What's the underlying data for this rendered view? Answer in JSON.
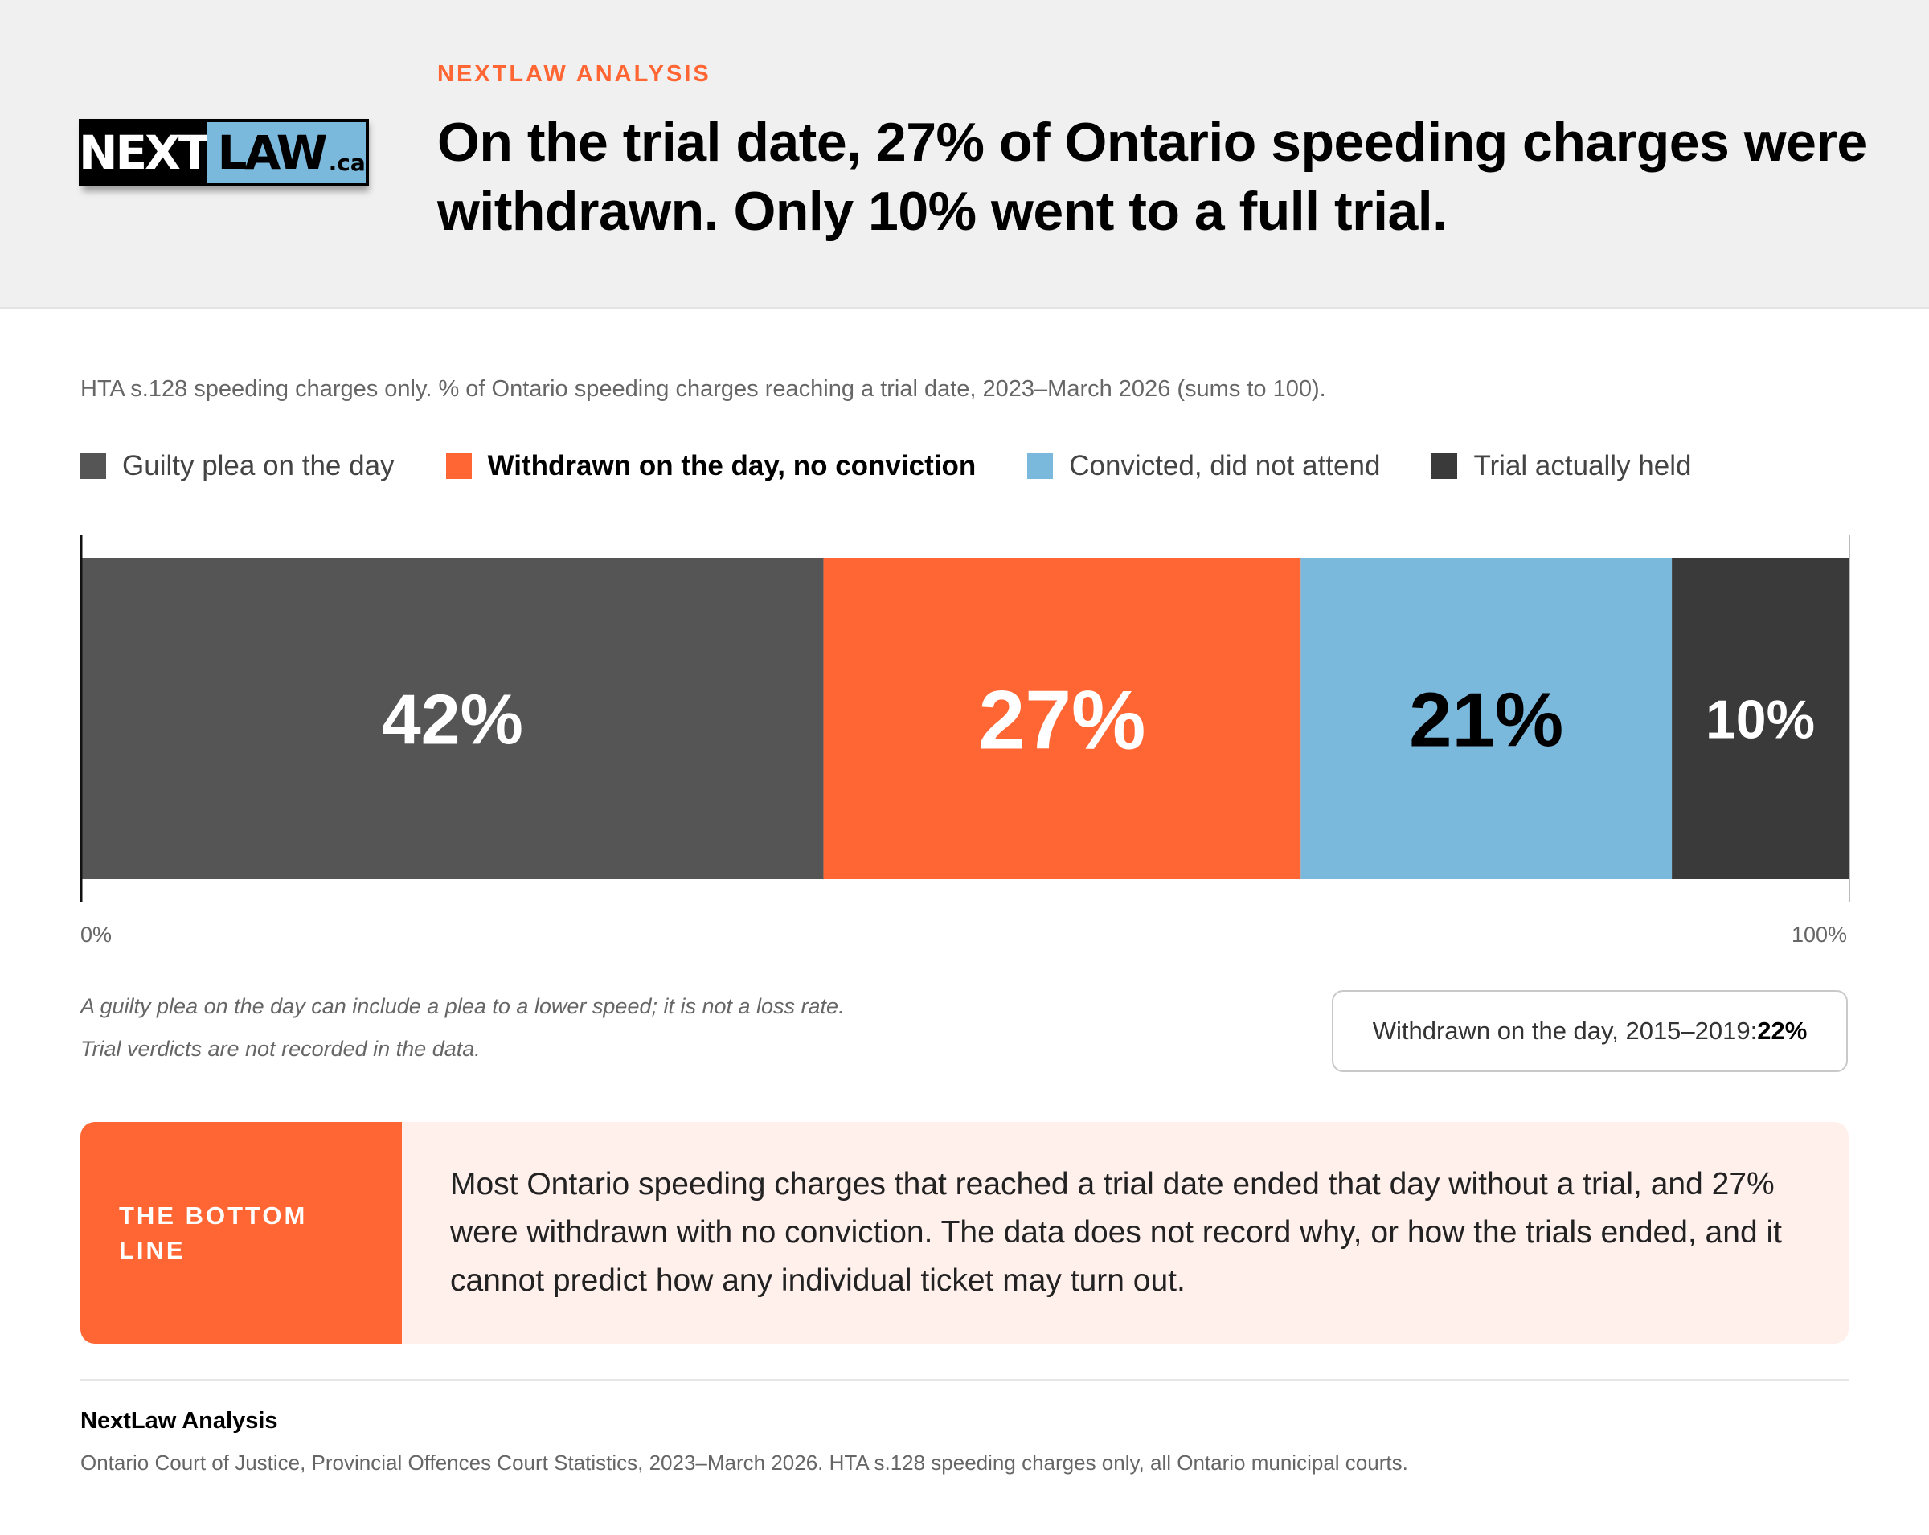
{
  "header": {
    "logo_next": "NEXT",
    "logo_law": "LAW",
    "logo_ca": ".ca",
    "kicker": "NEXTLAW ANALYSIS",
    "title": "On the trial date, 27% of Ontario speeding charges were withdrawn. Only 10% went to a full trial."
  },
  "subtitle": "HTA s.128 speeding charges only. % of Ontario speeding charges reaching a trial date, 2023–March 2026 (sums to 100).",
  "legend": [
    {
      "label": "Guilty plea on the day",
      "color": "#555555"
    },
    {
      "label": "Withdrawn on the day, no conviction",
      "color": "#ff6633"
    },
    {
      "label": "Convicted, did not attend",
      "color": "#7ab8dc"
    },
    {
      "label": "Trial actually held",
      "color": "#3a3a3a"
    }
  ],
  "chart_data": {
    "type": "bar",
    "orientation": "horizontal-stacked-100",
    "categories": [
      "Guilty plea on the day",
      "Withdrawn on the day, no conviction",
      "Convicted, did not attend",
      "Trial actually held"
    ],
    "series": [
      {
        "name": "Guilty plea on the day",
        "value": 42,
        "label": "42%",
        "color": "#555555",
        "label_color": "#ffffff"
      },
      {
        "name": "Withdrawn on the day, no conviction",
        "value": 27,
        "label": "27%",
        "color": "#ff6633",
        "label_color": "#ffffff"
      },
      {
        "name": "Convicted, did not attend",
        "value": 21,
        "label": "21%",
        "color": "#7ab8dc",
        "label_color": "#000000"
      },
      {
        "name": "Trial actually held",
        "value": 10,
        "label": "10%",
        "color": "#3a3a3a",
        "label_color": "#ffffff"
      }
    ],
    "xlim": [
      0,
      100
    ],
    "x_tick_labels": [
      "0%",
      "100%"
    ],
    "grid": false,
    "legend_position": "top-left"
  },
  "notes": [
    "A guilty plea on the day can include a plea to a lower speed; it is not a loss rate.",
    "Trial verdicts are not recorded in the data."
  ],
  "callout": {
    "label": "Withdrawn on the day, 2015–2019: ",
    "value": "22%"
  },
  "bottom_line": {
    "label": "THE BOTTOM LINE",
    "text": "Most Ontario speeding charges that reached a trial date ended that day without a trial, and 27% were withdrawn with no conviction. The data does not record why, or how the trials ended, and it cannot predict how any individual ticket may turn out."
  },
  "source": {
    "title": "NextLaw Analysis",
    "text": "Ontario Court of Justice, Provincial Offences Court Statistics, 2023–March 2026. HTA s.128 speeding charges only, all Ontario municipal courts."
  }
}
